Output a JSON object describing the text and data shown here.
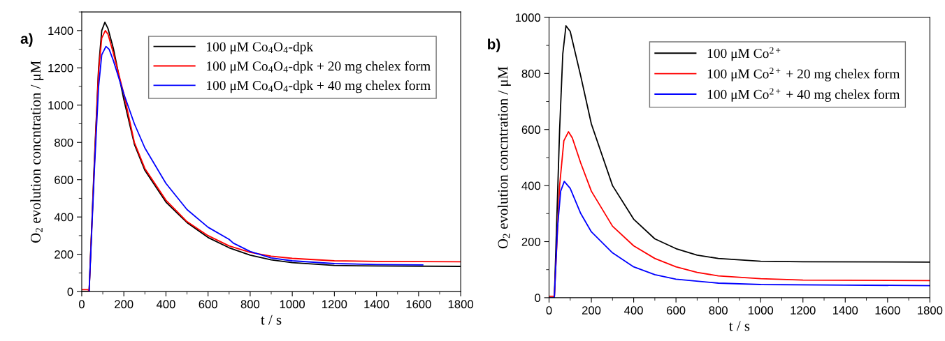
{
  "chart_data": [
    {
      "type": "line",
      "xlabel": "t / s",
      "ylabel": "O$_{2}$ evolution concntration / μM",
      "annotations": [
        "a)"
      ],
      "xlim": [
        0,
        1800
      ],
      "ylim": [
        0,
        1500
      ],
      "xticks": [
        0,
        200,
        400,
        600,
        800,
        1000,
        1200,
        1400,
        1600,
        1800
      ],
      "yticks": [
        0,
        200,
        400,
        600,
        800,
        1000,
        1200,
        1400
      ],
      "grid": false,
      "legend": "top right",
      "marker": "none",
      "line_style": "solid",
      "series": [
        {
          "name": "100 μM Co$_{4}$O$_{4}$-dpk",
          "color": "#000000",
          "x": [
            0,
            35,
            60,
            80,
            95,
            110,
            125,
            150,
            200,
            250,
            300,
            400,
            500,
            600,
            700,
            800,
            900,
            1000,
            1200,
            1400,
            1800
          ],
          "values": [
            0,
            0,
            700,
            1200,
            1400,
            1445,
            1410,
            1305,
            1030,
            790,
            650,
            480,
            370,
            290,
            235,
            195,
            170,
            155,
            140,
            137,
            135
          ]
        },
        {
          "name": "100 μM Co$_{4}$O$_{4}$-dpk + 20 mg chelex form",
          "color": "#ff0000",
          "x": [
            0,
            30,
            35,
            60,
            80,
            95,
            112,
            125,
            150,
            200,
            250,
            300,
            400,
            500,
            600,
            700,
            800,
            900,
            1000,
            1200,
            1400,
            1800
          ],
          "values": [
            10,
            10,
            0,
            680,
            1180,
            1360,
            1400,
            1380,
            1280,
            1060,
            800,
            660,
            490,
            375,
            300,
            245,
            210,
            190,
            178,
            165,
            162,
            160
          ]
        },
        {
          "name": "100 μM Co$_{4}$O$_{4}$-dpk + 40 mg chelex form",
          "color": "#0000ff",
          "x": [
            35,
            60,
            80,
            95,
            115,
            130,
            150,
            200,
            250,
            300,
            400,
            500,
            600,
            700,
            720,
            800,
            900,
            1000,
            1200,
            1400,
            1620
          ],
          "values": [
            0,
            650,
            1100,
            1270,
            1315,
            1300,
            1240,
            1060,
            900,
            770,
            580,
            440,
            345,
            280,
            260,
            215,
            180,
            165,
            150,
            145,
            143
          ]
        }
      ]
    },
    {
      "type": "line",
      "xlabel": "t / s",
      "ylabel": "O$_{2}$ evolution concntration / μM",
      "annotations": [
        "b)"
      ],
      "xlim": [
        0,
        1800
      ],
      "ylim": [
        0,
        1000
      ],
      "xticks": [
        0,
        200,
        400,
        600,
        800,
        1000,
        1200,
        1400,
        1600,
        1800
      ],
      "yticks": [
        0,
        200,
        400,
        600,
        800,
        1000
      ],
      "grid": false,
      "legend": "top right",
      "marker": "none",
      "line_style": "solid",
      "series": [
        {
          "name": "100 μM Co$^{2+}$",
          "color": "#000000",
          "x": [
            0,
            25,
            50,
            65,
            80,
            100,
            150,
            200,
            300,
            400,
            500,
            600,
            700,
            800,
            1000,
            1200,
            1800
          ],
          "values": [
            0,
            0,
            600,
            870,
            970,
            950,
            790,
            620,
            400,
            280,
            210,
            175,
            152,
            140,
            130,
            128,
            127
          ]
        },
        {
          "name": "100 μM Co$^{2+}$ + 20 mg chelex form",
          "color": "#ff0000",
          "x": [
            0,
            22,
            25,
            50,
            70,
            92,
            110,
            150,
            200,
            300,
            400,
            500,
            600,
            700,
            800,
            1000,
            1200,
            1800
          ],
          "values": [
            5,
            5,
            0,
            400,
            560,
            592,
            570,
            480,
            380,
            255,
            185,
            140,
            110,
            90,
            78,
            68,
            63,
            61
          ]
        },
        {
          "name": "100 μM Co$^{2+}$ + 40 mg chelex form",
          "color": "#0000ff",
          "x": [
            0,
            25,
            40,
            55,
            72,
            100,
            150,
            200,
            300,
            400,
            500,
            600,
            800,
            1000,
            1400,
            1800
          ],
          "values": [
            0,
            0,
            250,
            380,
            415,
            390,
            300,
            235,
            160,
            110,
            82,
            66,
            52,
            47,
            45,
            43
          ]
        }
      ]
    }
  ]
}
